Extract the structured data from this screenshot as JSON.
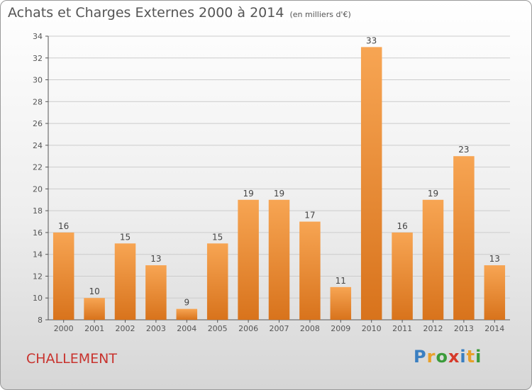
{
  "title": "Achats et Charges Externes 2000 à 2014",
  "subtitle": "(en milliers d'€)",
  "commune": "CHALLEMENT",
  "logo": {
    "text": "Proxiti",
    "letters": [
      {
        "ch": "P",
        "color": "#3a7fc1"
      },
      {
        "ch": "r",
        "color": "#e8a02a"
      },
      {
        "ch": "o",
        "color": "#3a9b3a"
      },
      {
        "ch": "x",
        "color": "#d63a2a"
      },
      {
        "ch": "i",
        "color": "#3a7fc1"
      },
      {
        "ch": "t",
        "color": "#e8a02a"
      },
      {
        "ch": "i",
        "color": "#3a9b3a"
      }
    ]
  },
  "colors": {
    "bar_light": "#f7a553",
    "bar_dark": "#d8731c",
    "grid": "#cccccc",
    "axis": "#555555",
    "commune": "#c8332e"
  },
  "chart_data": {
    "type": "bar",
    "title": "Achats et Charges Externes 2000 à 2014",
    "subtitle": "(en milliers d'€)",
    "categories": [
      "2000",
      "2001",
      "2002",
      "2003",
      "2004",
      "2005",
      "2006",
      "2007",
      "2008",
      "2009",
      "2010",
      "2011",
      "2012",
      "2013",
      "2014"
    ],
    "values": [
      16,
      10,
      15,
      13,
      9,
      15,
      19,
      19,
      17,
      11,
      33,
      16,
      19,
      23,
      13
    ],
    "ylim": [
      8,
      34
    ],
    "yticks": [
      8,
      10,
      12,
      14,
      16,
      18,
      20,
      22,
      24,
      26,
      28,
      30,
      32,
      34
    ],
    "grid": true,
    "data_labels": true
  }
}
